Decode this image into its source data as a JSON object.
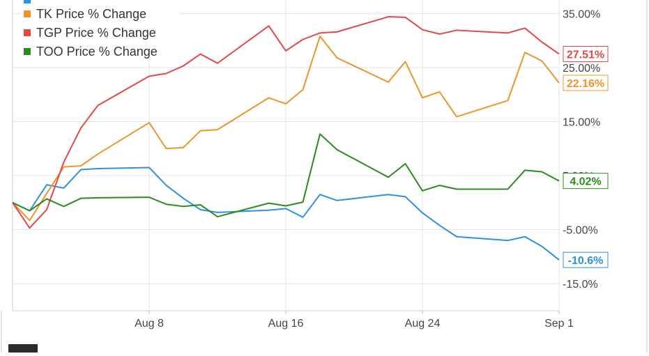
{
  "chart_data": {
    "type": "line",
    "title": "",
    "xlabel": "",
    "ylabel": "",
    "x_tick_labels": [
      "Aug 8",
      "Aug 16",
      "Aug 24",
      "Sep 1"
    ],
    "y_tick_labels": [
      "35.00%",
      "25.00%",
      "15.00%",
      "5.00%",
      "-5.00%",
      "-15.0%"
    ],
    "y_tick_values": [
      35,
      25,
      15,
      5,
      -5,
      -15
    ],
    "ylim": [
      -20,
      37.5
    ],
    "grid": true,
    "legend_position": "top-left",
    "x_dates": [
      "Jul 31",
      "Aug 1",
      "Aug 2",
      "Aug 3",
      "Aug 4",
      "Aug 5",
      "Aug 8",
      "Aug 9",
      "Aug 10",
      "Aug 11",
      "Aug 12",
      "Aug 15",
      "Aug 16",
      "Aug 17",
      "Aug 18",
      "Aug 19",
      "Aug 22",
      "Aug 23",
      "Aug 24",
      "Aug 25",
      "Aug 26",
      "Aug 29",
      "Aug 30",
      "Aug 31",
      "Sep 1"
    ],
    "x_positions": [
      0,
      1,
      2,
      3,
      4,
      5,
      8,
      9,
      10,
      11,
      12,
      15,
      16,
      17,
      18,
      19,
      22,
      23,
      24,
      25,
      26,
      29,
      30,
      31,
      32
    ],
    "series": [
      {
        "name": "",
        "color": "#2e90e0",
        "values": [
          0,
          -1.5,
          3.3,
          2.7,
          6.1,
          6.3,
          6.5,
          3.2,
          0.8,
          -1.3,
          -1.8,
          -1.4,
          -1.1,
          -2.7,
          1.5,
          0.4,
          1.5,
          1.1,
          -1.9,
          -4.2,
          -6.3,
          -7.0,
          -6.3,
          -8.1,
          -10.6
        ],
        "end_label": "-10.6%"
      },
      {
        "name": "TK Price % Change",
        "color": "#f0942a",
        "values": [
          0,
          -3.3,
          1.7,
          6.6,
          6.8,
          9.0,
          14.8,
          10.0,
          10.2,
          13.3,
          13.5,
          19.4,
          18.3,
          20.9,
          30.8,
          26.8,
          22.3,
          26.1,
          19.4,
          20.5,
          15.9,
          18.9,
          27.8,
          26.2,
          22.16
        ],
        "end_label": "22.16%"
      },
      {
        "name": "TGP Price % Change",
        "color": "#e54646",
        "values": [
          0,
          -4.7,
          -1.3,
          7.5,
          13.8,
          18.0,
          23.4,
          23.9,
          25.3,
          27.5,
          25.8,
          32.7,
          28.1,
          30.2,
          31.4,
          31.6,
          34.4,
          34.3,
          32.0,
          31.2,
          31.9,
          31.4,
          32.3,
          29.7,
          27.51
        ],
        "end_label": "27.51%"
      },
      {
        "name": "TOO Price % Change",
        "color": "#2a8c1c",
        "values": [
          0,
          -1.5,
          0.7,
          -0.7,
          0.8,
          0.9,
          1.0,
          -0.3,
          -0.7,
          -0.4,
          -2.6,
          -0.1,
          -0.6,
          0.1,
          12.7,
          9.8,
          4.7,
          7.2,
          2.2,
          3.2,
          2.5,
          2.5,
          6.0,
          5.7,
          4.02
        ],
        "end_label": "4.02%"
      }
    ]
  }
}
